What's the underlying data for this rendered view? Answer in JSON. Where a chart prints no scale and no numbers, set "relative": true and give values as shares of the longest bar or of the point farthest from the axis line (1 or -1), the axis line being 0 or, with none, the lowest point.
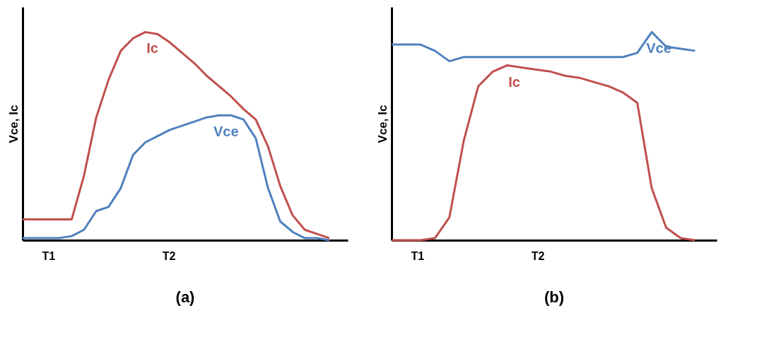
{
  "chart_data": [
    {
      "type": "line",
      "title": "(a)",
      "ylabel": "Vce, Ic",
      "relative": true,
      "legend": false,
      "grid": false,
      "marker": "none",
      "line_style": "solid",
      "categories": [
        null,
        null,
        null,
        null,
        null,
        null,
        null,
        null,
        null,
        null,
        null,
        null,
        null,
        null,
        null,
        null,
        null,
        null,
        null,
        null,
        null,
        null,
        null,
        null,
        null,
        null
      ],
      "series": [
        {
          "name": "Ic",
          "color": "#c0504d",
          "values": [
            0.1,
            0.1,
            0.1,
            0.1,
            0.1,
            0.31,
            0.59,
            0.77,
            0.91,
            0.97,
            1.0,
            0.99,
            0.95,
            0.9,
            0.85,
            0.79,
            0.74,
            0.69,
            0.63,
            0.58,
            0.45,
            0.26,
            0.12,
            0.05,
            0.03,
            0.01
          ]
        },
        {
          "name": "Vce",
          "color": "#4f81bd",
          "values": [
            0.01,
            0.01,
            0.01,
            0.01,
            0.02,
            0.05,
            0.14,
            0.16,
            0.25,
            0.41,
            0.47,
            0.5,
            0.53,
            0.55,
            0.57,
            0.59,
            0.6,
            0.6,
            0.58,
            0.49,
            0.25,
            0.09,
            0.04,
            0.01,
            0.01,
            0.0
          ]
        }
      ],
      "annotations": [
        "T1",
        "T2"
      ]
    },
    {
      "type": "line",
      "title": "(b)",
      "ylabel": "Vce, Ic",
      "relative": true,
      "legend": false,
      "grid": false,
      "marker": "none",
      "line_style": "solid",
      "categories": [
        null,
        null,
        null,
        null,
        null,
        null,
        null,
        null,
        null,
        null,
        null,
        null,
        null,
        null,
        null,
        null,
        null,
        null,
        null,
        null,
        null,
        null
      ],
      "series": [
        {
          "name": "Vce",
          "color": "#4f81bd",
          "values": [
            0.94,
            0.94,
            0.94,
            0.91,
            0.86,
            0.88,
            0.88,
            0.88,
            0.88,
            0.88,
            0.88,
            0.88,
            0.88,
            0.88,
            0.88,
            0.88,
            0.88,
            0.9,
            1.0,
            0.93,
            0.92,
            0.91
          ]
        },
        {
          "name": "Ic",
          "color": "#c0504d",
          "values": [
            0.0,
            0.0,
            0.0,
            0.01,
            0.11,
            0.48,
            0.74,
            0.81,
            0.84,
            0.83,
            0.82,
            0.81,
            0.79,
            0.78,
            0.76,
            0.74,
            0.71,
            0.66,
            0.25,
            0.06,
            0.01,
            0.0
          ]
        }
      ],
      "annotations": [
        "T1",
        "T2"
      ]
    }
  ]
}
